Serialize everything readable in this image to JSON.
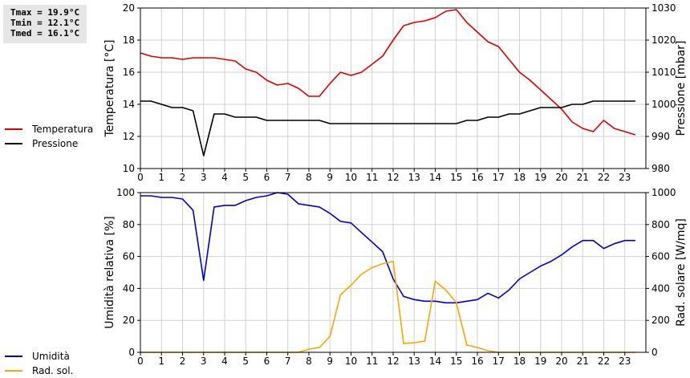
{
  "stats": {
    "tmax": "Tmax = 19.9°C",
    "tmin": "Tmin = 12.1°C",
    "tmed": "Tmed = 16.1°C"
  },
  "chart_data": [
    {
      "type": "line",
      "x": [
        0,
        0.5,
        1,
        1.5,
        2,
        2.5,
        3,
        3.5,
        4,
        4.5,
        5,
        5.5,
        6,
        6.5,
        7,
        7.5,
        8,
        8.5,
        9,
        9.5,
        10,
        10.5,
        11,
        11.5,
        12,
        12.5,
        13,
        13.5,
        14,
        14.5,
        15,
        15.5,
        16,
        16.5,
        17,
        17.5,
        18,
        18.5,
        19,
        19.5,
        20,
        20.5,
        21,
        21.5,
        22,
        22.5,
        23,
        23.5
      ],
      "xticks": [
        0,
        1,
        2,
        3,
        4,
        5,
        6,
        7,
        8,
        9,
        10,
        11,
        12,
        13,
        14,
        15,
        16,
        17,
        18,
        19,
        20,
        21,
        22,
        23
      ],
      "xlim": [
        0,
        24
      ],
      "ylabel": "Temperatura [°C]",
      "ylim": [
        10,
        20
      ],
      "yticks": [
        10,
        12,
        14,
        16,
        18,
        20
      ],
      "y2label": "Pressione [mbar]",
      "y2lim": [
        980,
        1030
      ],
      "y2ticks": [
        980,
        990,
        1000,
        1010,
        1020,
        1030
      ],
      "legend": "left",
      "grid": true,
      "series": [
        {
          "name": "Temperatura",
          "axis": "left",
          "color": "#dd0000",
          "values": [
            17.2,
            17.0,
            16.9,
            16.9,
            16.8,
            16.9,
            16.9,
            16.9,
            16.8,
            16.7,
            16.2,
            16.0,
            15.5,
            15.2,
            15.3,
            15.0,
            14.5,
            14.5,
            15.3,
            16.0,
            15.8,
            16.0,
            16.5,
            17.0,
            18.0,
            18.9,
            19.1,
            19.2,
            19.4,
            19.8,
            19.9,
            19.1,
            18.5,
            17.9,
            17.6,
            16.8,
            16.0,
            15.5,
            14.9,
            14.3,
            13.7,
            12.9,
            12.5,
            12.3,
            13.0,
            12.5,
            12.3,
            12.1
          ]
        },
        {
          "name": "Pressione",
          "axis": "right",
          "color": "#000000",
          "values": [
            1001,
            1001,
            1000,
            999,
            999,
            998,
            984,
            997,
            997,
            996,
            996,
            996,
            995,
            995,
            995,
            995,
            995,
            995,
            994,
            994,
            994,
            994,
            994,
            994,
            994,
            994,
            994,
            994,
            994,
            994,
            994,
            995,
            995,
            996,
            996,
            997,
            997,
            998,
            999,
            999,
            999,
            1000,
            1000,
            1001,
            1001,
            1001,
            1001,
            1001
          ]
        }
      ]
    },
    {
      "type": "line",
      "x": [
        0,
        0.5,
        1,
        1.5,
        2,
        2.5,
        3,
        3.5,
        4,
        4.5,
        5,
        5.5,
        6,
        6.5,
        7,
        7.5,
        8,
        8.5,
        9,
        9.5,
        10,
        10.5,
        11,
        11.5,
        12,
        12.5,
        13,
        13.5,
        14,
        14.5,
        15,
        15.5,
        16,
        16.5,
        17,
        17.5,
        18,
        18.5,
        19,
        19.5,
        20,
        20.5,
        21,
        21.5,
        22,
        22.5,
        23,
        23.5
      ],
      "xticks": [
        0,
        1,
        2,
        3,
        4,
        5,
        6,
        7,
        8,
        9,
        10,
        11,
        12,
        13,
        14,
        15,
        16,
        17,
        18,
        19,
        20,
        21,
        22,
        23
      ],
      "xlim": [
        0,
        24
      ],
      "ylabel": "Umidità relativa [%]",
      "ylim": [
        0,
        100
      ],
      "yticks": [
        0,
        20,
        40,
        60,
        80,
        100
      ],
      "y2label": "Rad. solare [W/mq]",
      "y2lim": [
        0,
        1000
      ],
      "y2ticks": [
        0,
        200,
        400,
        600,
        800,
        1000
      ],
      "legend": "left",
      "grid": true,
      "series": [
        {
          "name": "Umidità",
          "axis": "left",
          "color": "#0000cc",
          "values": [
            98,
            98,
            97,
            97,
            96,
            89,
            45,
            91,
            92,
            92,
            95,
            97,
            98,
            100,
            99,
            93,
            92,
            91,
            87,
            82,
            81,
            75,
            69,
            63,
            46,
            35,
            33,
            32,
            32,
            31,
            31,
            32,
            33,
            37,
            34,
            39,
            46,
            50,
            54,
            57,
            61,
            66,
            70,
            70,
            65,
            68,
            70,
            70
          ]
        },
        {
          "name": "Rad. sol.",
          "axis": "right",
          "color": "#f5a800",
          "values": [
            0,
            0,
            0,
            0,
            0,
            0,
            0,
            0,
            0,
            0,
            0,
            0,
            0,
            0,
            0,
            0,
            20,
            30,
            100,
            360,
            420,
            490,
            530,
            555,
            570,
            55,
            60,
            70,
            445,
            390,
            310,
            45,
            30,
            10,
            0,
            0,
            0,
            0,
            0,
            0,
            0,
            0,
            0,
            0,
            0,
            0,
            0,
            0
          ]
        }
      ]
    }
  ]
}
